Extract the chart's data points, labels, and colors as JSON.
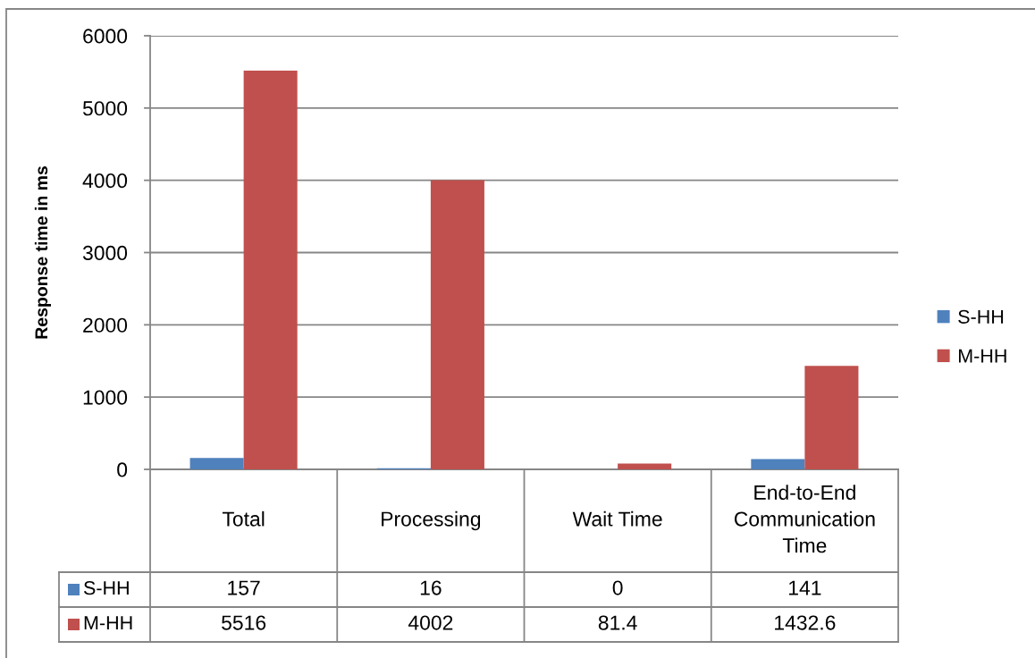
{
  "chart_data": {
    "type": "bar",
    "ylabel": "Response time in ms",
    "categories": [
      "Total",
      "Processing",
      "Wait Time",
      "End-to-End Communication Time"
    ],
    "series": [
      {
        "name": "S-HH",
        "color": "#4f81bd",
        "values": [
          157,
          16,
          0,
          141
        ]
      },
      {
        "name": "M-HH",
        "color": "#c0504d",
        "values": [
          5516,
          4002,
          81.4,
          1432.6
        ]
      }
    ],
    "ylim": [
      0,
      6000
    ],
    "yticks": [
      0,
      1000,
      2000,
      3000,
      4000,
      5000,
      6000
    ],
    "grid": "y",
    "legend": "right",
    "data_labels": true
  }
}
